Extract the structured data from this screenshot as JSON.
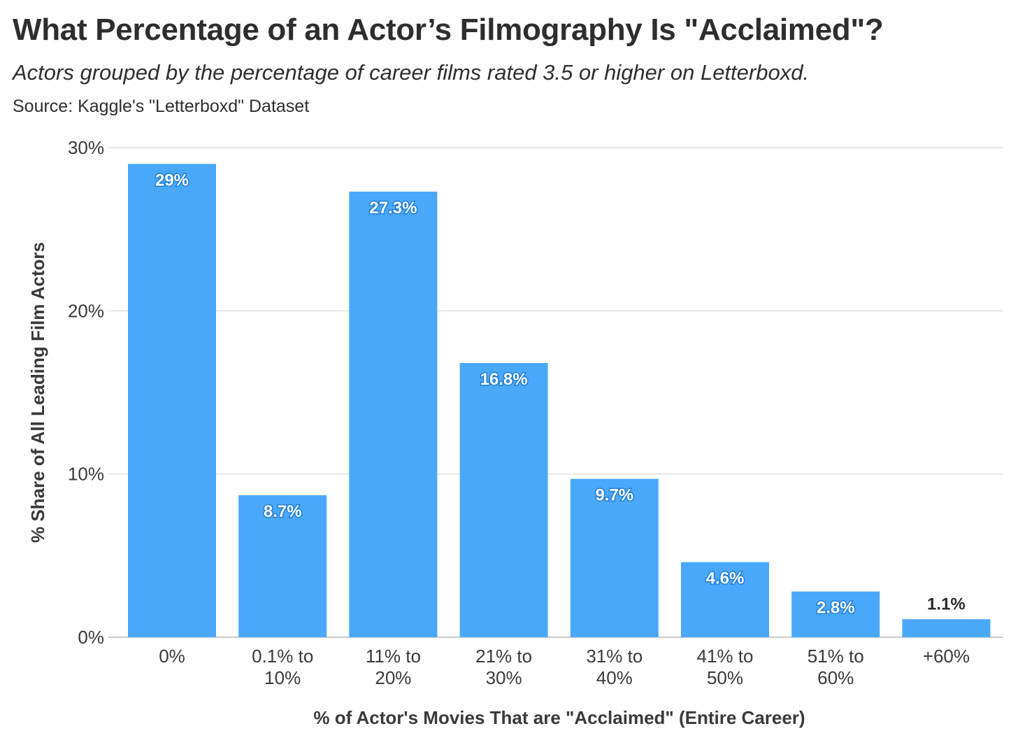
{
  "header": {
    "title": "What Percentage of an Actor’s Filmography Is \"Acclaimed\"?",
    "subtitle": "Actors grouped by the percentage of career films rated 3.5 or higher on Letterboxd.",
    "source": "Source: Kaggle's \"Letterboxd\" Dataset"
  },
  "colors": {
    "bar": "#4aa8fb",
    "grid": "#e6e6e6",
    "axis": "#cccccc"
  },
  "chart_data": {
    "type": "bar",
    "title": "What Percentage of an Actor’s Filmography Is \"Acclaimed\"?",
    "xlabel": "% of Actor's Movies That are \"Acclaimed\" (Entire Career)",
    "ylabel": "% Share of All Leading Film Actors",
    "ylim": [
      0,
      30
    ],
    "yticks": [
      0,
      10,
      20,
      30
    ],
    "ytick_labels": [
      "0%",
      "10%",
      "20%",
      "30%"
    ],
    "grid": true,
    "categories": [
      [
        "0%"
      ],
      [
        "0.1% to",
        "10%"
      ],
      [
        "11% to",
        "20%"
      ],
      [
        "21% to",
        "30%"
      ],
      [
        "31% to",
        "40%"
      ],
      [
        "41% to",
        "50%"
      ],
      [
        "51% to",
        "60%"
      ],
      [
        "+60%"
      ]
    ],
    "values": [
      29,
      8.7,
      27.3,
      16.8,
      9.7,
      4.6,
      2.8,
      1.1
    ],
    "value_labels": [
      "29%",
      "8.7%",
      "27.3%",
      "16.8%",
      "9.7%",
      "4.6%",
      "2.8%",
      "1.1%"
    ]
  }
}
